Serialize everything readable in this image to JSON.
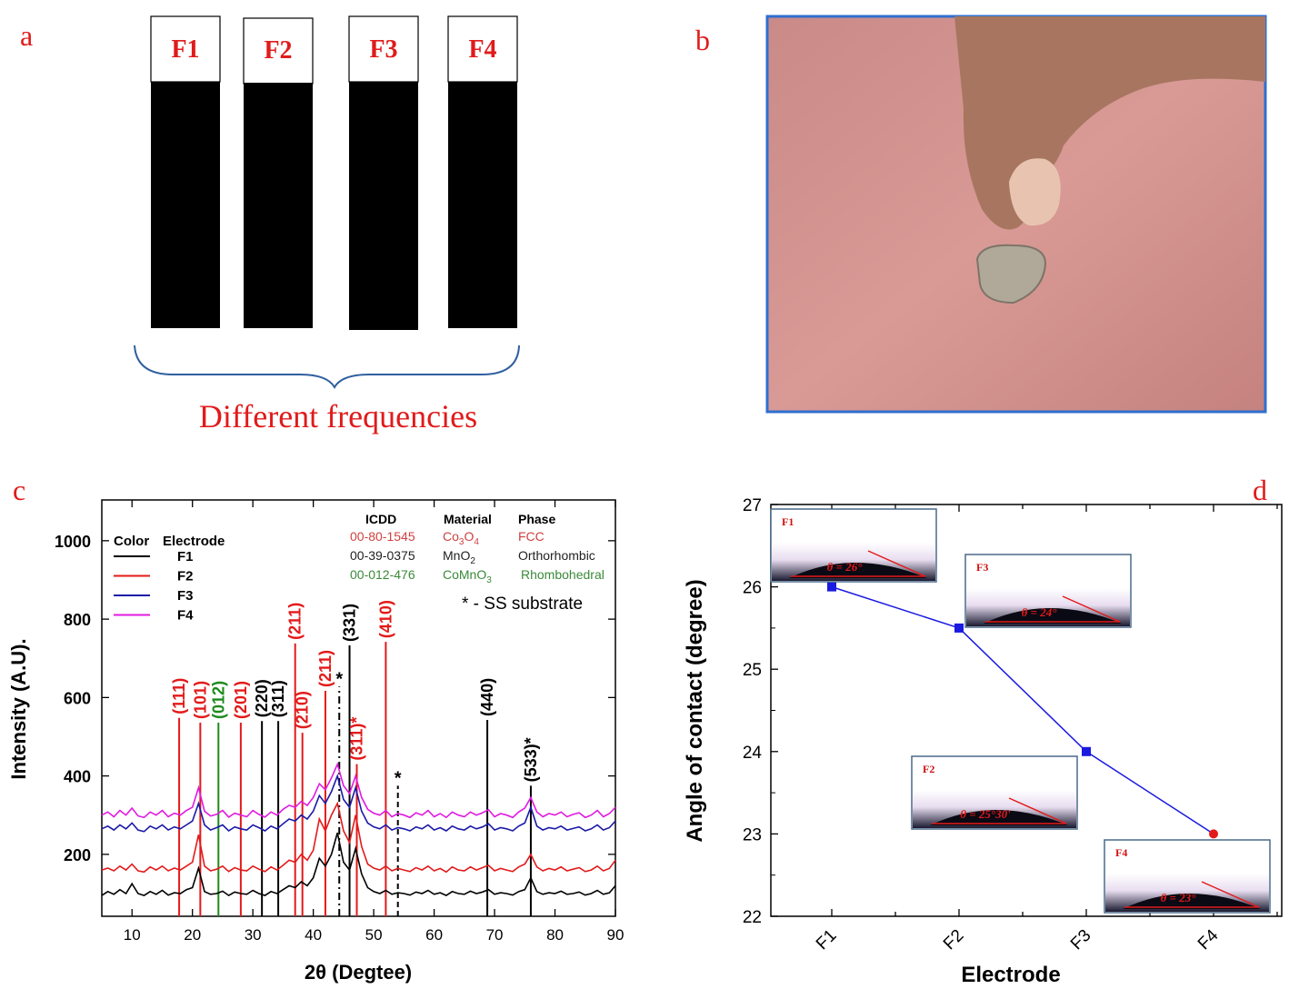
{
  "panel_labels": {
    "a": "a",
    "b": "b",
    "c": "c",
    "d": "d"
  },
  "panel_a": {
    "electrodes": [
      "F1",
      "F2",
      "F3",
      "F4"
    ],
    "caption": "Different frequencies"
  },
  "colors": {
    "label_red": "#e01b1b",
    "F1": "#000000",
    "F2": "#e31a1a",
    "F3": "#1a1aa8",
    "F4": "#e01be0",
    "photo_border": "#2f6fd0",
    "line_d": "#1a1ae0"
  },
  "chart_data": [
    {
      "type": "line",
      "title": "",
      "xlabel": "2θ (Degtee)",
      "ylabel": "Intensity (A.U).",
      "xlim": [
        5,
        90
      ],
      "ylim": [
        42,
        1104
      ],
      "xticks": [
        10,
        20,
        30,
        40,
        50,
        60,
        70,
        80,
        90
      ],
      "yticks": [
        200,
        400,
        600,
        800,
        1000
      ],
      "legend": {
        "title_color": "Color",
        "title_electrode": "Electrode",
        "position": "top-left"
      },
      "x_start": 5,
      "x_step": 1,
      "series": [
        {
          "name": "F1",
          "color": "#000000",
          "values": [
            95,
            105,
            98,
            110,
            100,
            125,
            100,
            95,
            105,
            98,
            108,
            96,
            102,
            100,
            110,
            115,
            165,
            105,
            98,
            100,
            106,
            95,
            104,
            100,
            98,
            108,
            100,
            95,
            105,
            100,
            110,
            120,
            115,
            130,
            120,
            140,
            190,
            170,
            200,
            255,
            180,
            160,
            215,
            150,
            115,
            105,
            100,
            108,
            98,
            102,
            100,
            96,
            104,
            100,
            108,
            98,
            102,
            95,
            105,
            100,
            98,
            106,
            100,
            104,
            110,
            98,
            102,
            100,
            96,
            105,
            110,
            140,
            105,
            98,
            102,
            100,
            106,
            98,
            100,
            104,
            96,
            100,
            108,
            98,
            102,
            120
          ]
        },
        {
          "name": "F2",
          "color": "#e31a1a",
          "values": [
            160,
            165,
            158,
            170,
            160,
            175,
            158,
            155,
            168,
            160,
            170,
            158,
            165,
            160,
            170,
            180,
            250,
            170,
            158,
            162,
            170,
            156,
            166,
            160,
            158,
            170,
            162,
            156,
            168,
            160,
            172,
            185,
            180,
            200,
            185,
            210,
            290,
            260,
            300,
            330,
            260,
            230,
            300,
            220,
            175,
            165,
            160,
            170,
            158,
            164,
            160,
            156,
            166,
            160,
            170,
            158,
            164,
            155,
            168,
            160,
            158,
            168,
            160,
            166,
            172,
            158,
            164,
            160,
            156,
            168,
            175,
            200,
            168,
            158,
            164,
            160,
            168,
            158,
            162,
            166,
            156,
            160,
            170,
            158,
            164,
            185
          ]
        },
        {
          "name": "F3",
          "color": "#1a1aa8",
          "values": [
            265,
            272,
            262,
            275,
            265,
            280,
            262,
            258,
            272,
            265,
            275,
            262,
            270,
            265,
            275,
            285,
            330,
            275,
            262,
            268,
            275,
            260,
            270,
            265,
            262,
            275,
            268,
            260,
            272,
            265,
            278,
            290,
            285,
            300,
            290,
            310,
            350,
            330,
            360,
            400,
            340,
            320,
            370,
            310,
            280,
            270,
            265,
            275,
            262,
            268,
            265,
            260,
            270,
            265,
            275,
            262,
            268,
            260,
            272,
            265,
            262,
            272,
            265,
            270,
            278,
            262,
            268,
            265,
            260,
            272,
            280,
            320,
            272,
            262,
            268,
            265,
            272,
            262,
            266,
            270,
            260,
            265,
            275,
            262,
            268,
            285
          ]
        },
        {
          "name": "F4",
          "color": "#e01be0",
          "values": [
            300,
            308,
            296,
            312,
            300,
            318,
            298,
            294,
            308,
            300,
            312,
            296,
            305,
            300,
            312,
            320,
            370,
            310,
            298,
            302,
            312,
            295,
            305,
            300,
            296,
            312,
            302,
            295,
            308,
            300,
            315,
            325,
            320,
            335,
            325,
            345,
            380,
            365,
            395,
            430,
            375,
            355,
            400,
            345,
            315,
            305,
            300,
            312,
            296,
            304,
            300,
            294,
            306,
            300,
            312,
            296,
            304,
            294,
            308,
            300,
            296,
            308,
            300,
            306,
            314,
            296,
            304,
            300,
            294,
            308,
            318,
            345,
            308,
            296,
            304,
            300,
            308,
            296,
            302,
            306,
            294,
            300,
            312,
            296,
            304,
            320
          ]
        }
      ],
      "reference_lines": [
        {
          "x": 17.8,
          "top": 548,
          "label": "(111)",
          "color": "#e31a1a",
          "style": "solid"
        },
        {
          "x": 21.3,
          "top": 536,
          "label": "(101)",
          "color": "#e31a1a",
          "style": "solid"
        },
        {
          "x": 24.3,
          "top": 536,
          "label": "(012)",
          "color": "#1d8a1d",
          "style": "solid"
        },
        {
          "x": 28.0,
          "top": 536,
          "label": "(201)",
          "color": "#e31a1a",
          "style": "solid"
        },
        {
          "x": 31.5,
          "top": 540,
          "label": "(220)",
          "color": "#000000",
          "style": "solid"
        },
        {
          "x": 34.2,
          "top": 540,
          "label": "(311)",
          "color": "#000000",
          "style": "solid"
        },
        {
          "x": 37.0,
          "top": 738,
          "label": "(211)",
          "color": "#e31a1a",
          "style": "solid"
        },
        {
          "x": 38.2,
          "top": 510,
          "label": "(210)",
          "color": "#e31a1a",
          "style": "solid"
        },
        {
          "x": 42.0,
          "top": 617,
          "label": "(211)",
          "color": "#e31a1a",
          "style": "solid"
        },
        {
          "x": 44.3,
          "top": 628,
          "label": "*",
          "color": "#000000",
          "style": "dashdot"
        },
        {
          "x": 46.0,
          "top": 733,
          "label": "(331)",
          "color": "#000000",
          "style": "solid"
        },
        {
          "x": 47.2,
          "top": 430,
          "label": "(311)*",
          "color": "#e31a1a",
          "style": "solid"
        },
        {
          "x": 52.0,
          "top": 742,
          "label": "(410)",
          "color": "#e31a1a",
          "style": "solid"
        },
        {
          "x": 54.0,
          "top": 375,
          "label": "*",
          "color": "#000000",
          "style": "dashed"
        },
        {
          "x": 68.8,
          "top": 543,
          "label": "(440)",
          "color": "#000000",
          "style": "solid"
        },
        {
          "x": 76.0,
          "top": 375,
          "label": "(533)*",
          "color": "#000000",
          "style": "solid"
        }
      ],
      "icdd_table": {
        "headers": [
          "ICDD",
          "Material",
          "Phase"
        ],
        "rows": [
          {
            "icdd": "00-80-1545",
            "material_parts": [
              "Co",
              "3",
              "O",
              "4"
            ],
            "phase": "FCC",
            "color": "#d04040"
          },
          {
            "icdd": "00-39-0375",
            "material_parts": [
              "MnO",
              "2",
              "",
              ""
            ],
            "phase": "Orthorhombic",
            "color": "#222222"
          },
          {
            "icdd": "00-012-476",
            "material_parts": [
              "CoMnO",
              "3",
              "",
              ""
            ],
            "phase": "Rhombohedral",
            "color": "#3a8a3a"
          }
        ],
        "note": "* - SS substrate"
      }
    },
    {
      "type": "line",
      "title": "",
      "xlabel": "Electrode",
      "ylabel": "Angle of contact (degree)",
      "categories": [
        "F1",
        "F2",
        "F3",
        "F4"
      ],
      "values": [
        26,
        25.5,
        24,
        23
      ],
      "ylim": [
        22,
        27
      ],
      "yticks": [
        22,
        23,
        24,
        25,
        26,
        27
      ],
      "insets": [
        {
          "label": "F1",
          "angle_text": "θ = 26°"
        },
        {
          "label": "F3",
          "angle_text": "θ = 24°"
        },
        {
          "label": "F2",
          "angle_text": "θ = 25°30'"
        },
        {
          "label": "F4",
          "angle_text": "θ = 23°"
        }
      ]
    }
  ]
}
